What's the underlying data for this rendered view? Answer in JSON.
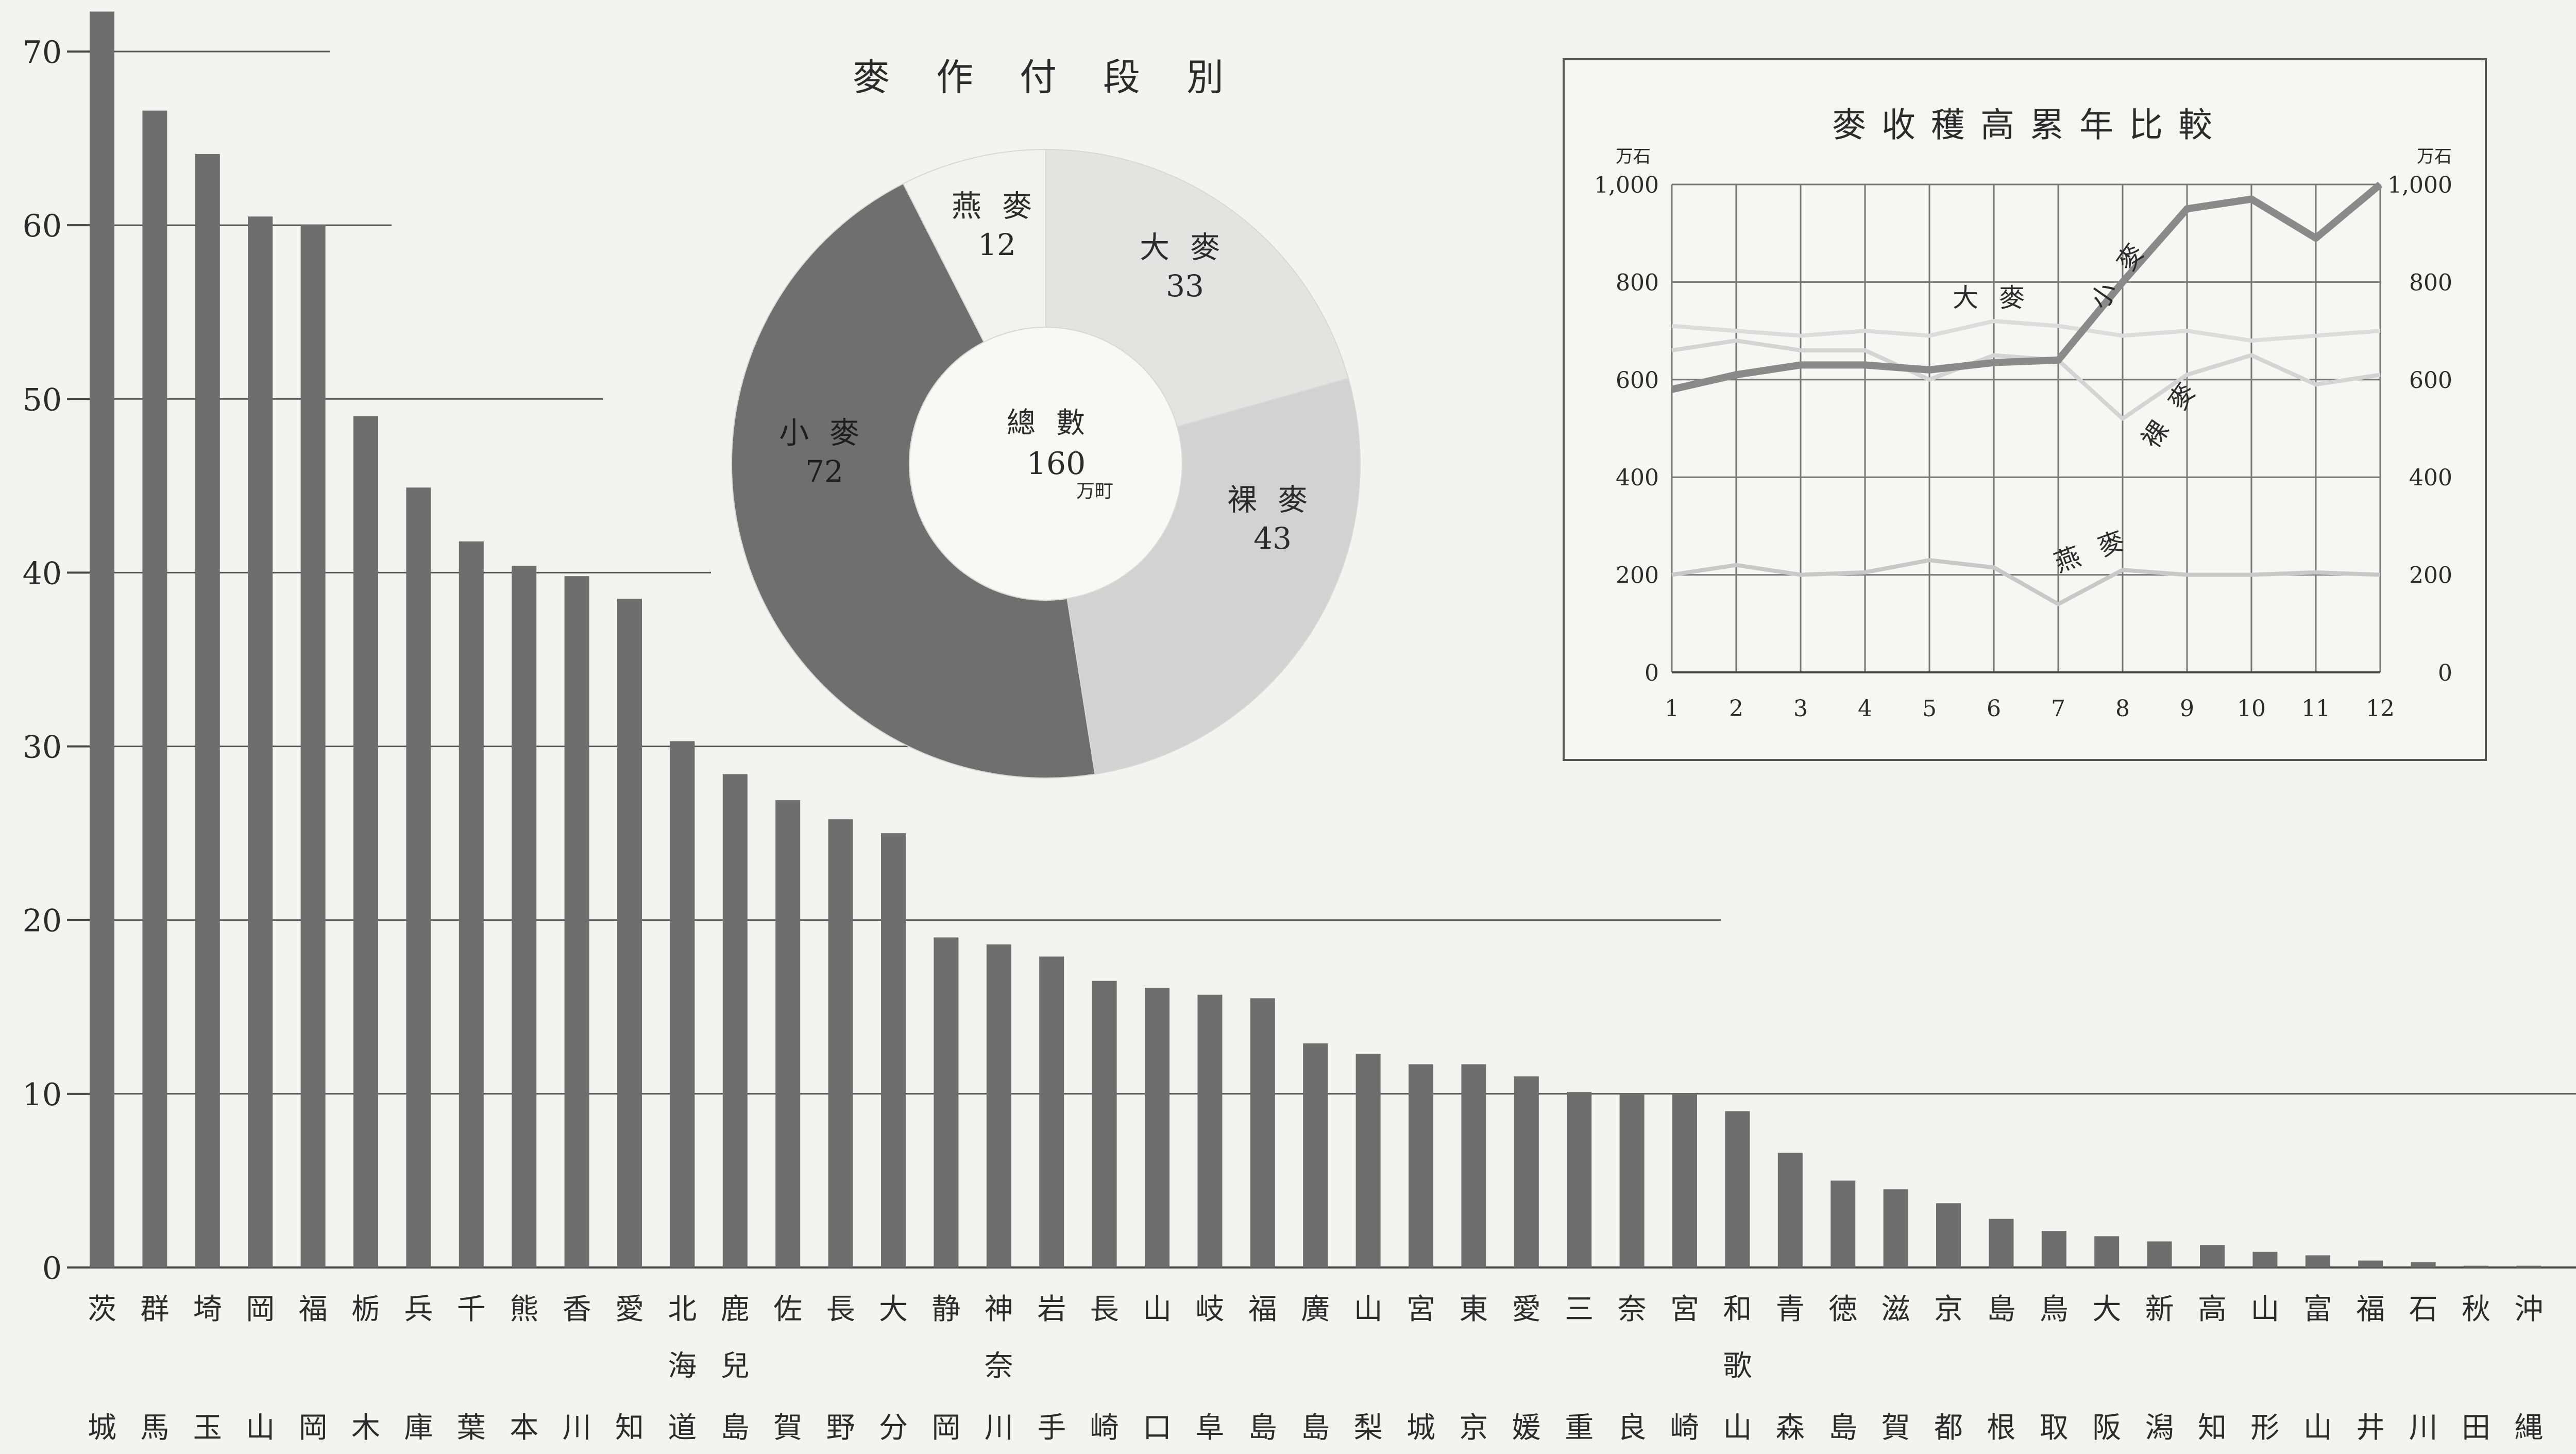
{
  "chart_data": [
    {
      "type": "bar",
      "ylim": [
        0,
        72
      ],
      "yticks": [
        0,
        10,
        20,
        30,
        40,
        50,
        60,
        70
      ],
      "bar_color": "#6e6e6e",
      "categories": [
        [
          "茨",
          "城"
        ],
        [
          "群",
          "馬"
        ],
        [
          "埼",
          "玉"
        ],
        [
          "岡",
          "山"
        ],
        [
          "福",
          "岡"
        ],
        [
          "栃",
          "木"
        ],
        [
          "兵",
          "庫"
        ],
        [
          "千",
          "葉"
        ],
        [
          "熊",
          "本"
        ],
        [
          "香",
          "川"
        ],
        [
          "愛",
          "知"
        ],
        [
          "北",
          "海",
          "道"
        ],
        [
          "鹿",
          "兒",
          "島"
        ],
        [
          "佐",
          "賀"
        ],
        [
          "長",
          "野"
        ],
        [
          "大",
          "分"
        ],
        [
          "静",
          "岡"
        ],
        [
          "神",
          "奈",
          "川"
        ],
        [
          "岩",
          "手"
        ],
        [
          "長",
          "崎"
        ],
        [
          "山",
          "口"
        ],
        [
          "岐",
          "阜"
        ],
        [
          "福",
          "島"
        ],
        [
          "廣",
          "島"
        ],
        [
          "山",
          "梨"
        ],
        [
          "宮",
          "城"
        ],
        [
          "東",
          "京"
        ],
        [
          "愛",
          "媛"
        ],
        [
          "三",
          "重"
        ],
        [
          "奈",
          "良"
        ],
        [
          "宮",
          "崎"
        ],
        [
          "和",
          "歌",
          "山"
        ],
        [
          "青",
          "森"
        ],
        [
          "徳",
          "島"
        ],
        [
          "滋",
          "賀"
        ],
        [
          "京",
          "都"
        ],
        [
          "島",
          "根"
        ],
        [
          "鳥",
          "取"
        ],
        [
          "大",
          "阪"
        ],
        [
          "新",
          "潟"
        ],
        [
          "高",
          "知"
        ],
        [
          "山",
          "形"
        ],
        [
          "富",
          "山"
        ],
        [
          "福",
          "井"
        ],
        [
          "石",
          "川"
        ],
        [
          "秋",
          "田"
        ],
        [
          "沖",
          "縄"
        ]
      ],
      "values": [
        72.3,
        66.6,
        64.1,
        60.5,
        60.0,
        49.0,
        44.9,
        41.8,
        40.4,
        39.8,
        38.5,
        30.3,
        28.4,
        26.9,
        25.8,
        25.0,
        19.0,
        18.6,
        17.9,
        16.5,
        16.1,
        15.7,
        15.5,
        12.9,
        12.3,
        11.7,
        11.7,
        11.0,
        10.1,
        10.0,
        10.0,
        9.0,
        6.6,
        5.0,
        4.5,
        3.7,
        2.8,
        2.1,
        1.8,
        1.5,
        1.3,
        0.9,
        0.7,
        0.4,
        0.3,
        0.1,
        0.1
      ]
    },
    {
      "type": "pie",
      "title": "麥作付段別",
      "center_label": "總數",
      "center_value": "160",
      "center_unit": "万町",
      "slices": [
        {
          "label": "燕麥",
          "value": 12,
          "color": "#f2f2ee",
          "text": "12"
        },
        {
          "label": "大麥",
          "value": 33,
          "color": "#e3e3e1",
          "text": "33"
        },
        {
          "label": "裸麥",
          "value": 43,
          "color": "#d2d2d2",
          "text": "43"
        },
        {
          "label": "小麥",
          "value": 72,
          "color": "#6f6f6f",
          "text": "72"
        }
      ]
    },
    {
      "type": "line",
      "title": "麥收穫高累年比較",
      "unit": "万石",
      "x": [
        1,
        2,
        3,
        4,
        5,
        6,
        7,
        8,
        9,
        10,
        11,
        12
      ],
      "ylim": [
        0,
        1000
      ],
      "yticks": [
        "0",
        "200",
        "400",
        "600",
        "800",
        "1,000"
      ],
      "series": [
        {
          "name": "小麥",
          "values": [
            580,
            610,
            630,
            630,
            620,
            635,
            640,
            800,
            950,
            970,
            890,
            1000
          ],
          "color": "#8a8a8a",
          "emphasis": true
        },
        {
          "name": "大麥",
          "values": [
            710,
            700,
            690,
            700,
            690,
            720,
            710,
            690,
            700,
            680,
            690,
            700
          ],
          "color": "#dcdcdc",
          "emphasis": false
        },
        {
          "name": "裸麥",
          "values": [
            660,
            680,
            660,
            660,
            600,
            650,
            640,
            520,
            610,
            650,
            590,
            610
          ],
          "color": "#d4d4d4",
          "emphasis": false
        },
        {
          "name": "燕麥",
          "values": [
            200,
            220,
            200,
            205,
            230,
            215,
            140,
            210,
            200,
            200,
            205,
            200
          ],
          "color": "#c8c8c8",
          "emphasis": false
        }
      ]
    }
  ]
}
